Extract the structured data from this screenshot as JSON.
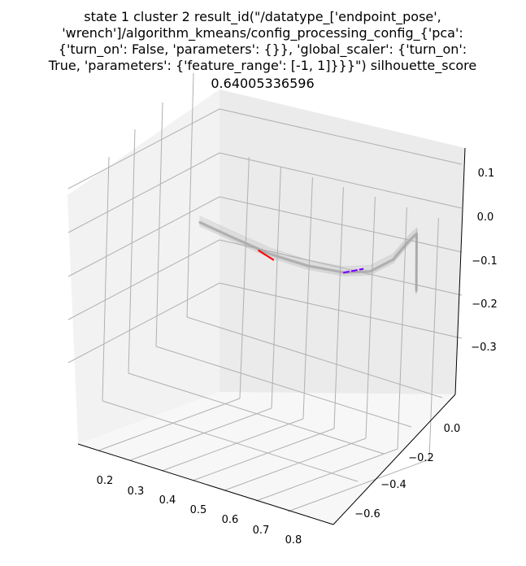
{
  "chart_data": {
    "type": "line3d",
    "title_lines": [
      "state 1 cluster 2 result_id(\"/datatype_['endpoint_pose',",
      "'wrench']/algorithm_kmeans/config_processing_config_{'pca':",
      "{'turn_on': False, 'parameters': {}}, 'global_scaler': {'turn_on':",
      "True, 'parameters': {'feature_range': [-1, 1]}}}\") silhouette_score",
      "0.64005336596"
    ],
    "x_ticks": [
      "0.2",
      "0.3",
      "0.4",
      "0.5",
      "0.6",
      "0.7",
      "0.8"
    ],
    "y_ticks": [
      "0.0",
      "−0.2",
      "−0.4",
      "−0.6"
    ],
    "z_ticks": [
      "0.1",
      "0.0",
      "−0.1",
      "−0.2",
      "−0.3"
    ],
    "grid": true,
    "series": [
      {
        "role": "trajectories",
        "color": "#a9a9a9",
        "points": [
          [
            0.16,
            -0.05,
            0.0
          ],
          [
            0.25,
            -0.05,
            -0.01
          ],
          [
            0.35,
            -0.05,
            -0.02
          ],
          [
            0.45,
            -0.05,
            -0.02
          ],
          [
            0.55,
            -0.05,
            -0.01
          ],
          [
            0.62,
            -0.05,
            0.01
          ],
          [
            0.68,
            -0.05,
            0.05
          ],
          [
            0.72,
            -0.05,
            0.1
          ],
          [
            0.74,
            -0.05,
            0.12
          ],
          [
            0.745,
            -0.05,
            0.0
          ]
        ]
      },
      {
        "role": "cluster-segment",
        "color": "#ff0000",
        "points": [
          [
            0.32,
            -0.05,
            -0.02
          ],
          [
            0.36,
            -0.05,
            -0.03
          ]
        ]
      },
      {
        "role": "cluster-segment",
        "color": "#7b00ff",
        "points": [
          [
            0.55,
            -0.05,
            -0.01
          ],
          [
            0.6,
            -0.05,
            0.01
          ]
        ]
      }
    ]
  }
}
